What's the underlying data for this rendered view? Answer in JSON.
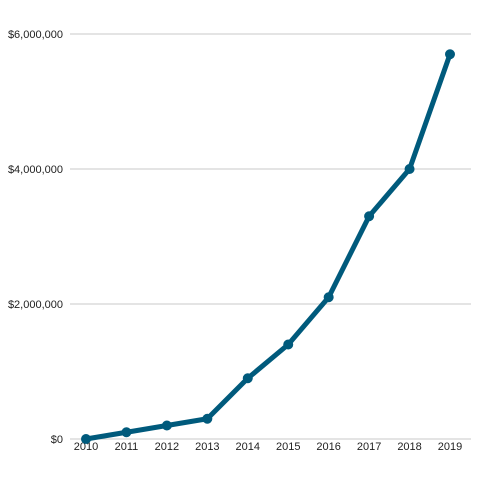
{
  "chart_data": {
    "type": "line",
    "title": "",
    "xlabel": "",
    "ylabel": "",
    "x": [
      "2010",
      "2011",
      "2012",
      "2013",
      "2014",
      "2015",
      "2016",
      "2017",
      "2018",
      "2019"
    ],
    "series": [
      {
        "values": [
          0,
          100000,
          200000,
          300000,
          900000,
          1400000,
          2100000,
          3300000,
          4000000,
          5700000
        ],
        "color": "#005a7c"
      }
    ],
    "ylim": [
      0,
      6000000
    ],
    "yticks": [
      0,
      2000000,
      4000000,
      6000000
    ],
    "ytick_labels": [
      "$0",
      "$2,000,000",
      "$4,000,000",
      "$6,000,000"
    ],
    "grid": true,
    "legend": "none"
  }
}
